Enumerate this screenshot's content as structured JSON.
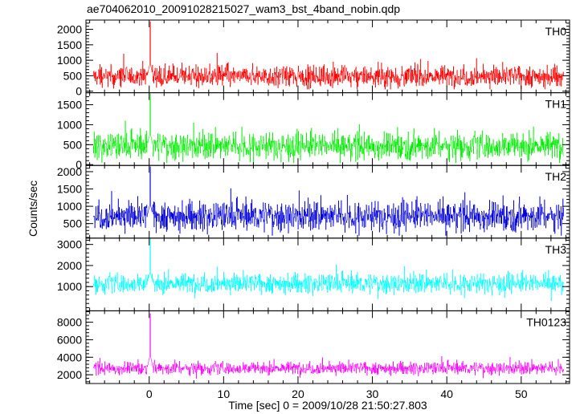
{
  "chart_data": {
    "type": "line",
    "title": "ae704062010_20091028215027_wam3_bst_4band_nobin.qdp",
    "xlabel": "Time [sec] 0 = 2009/10/28 21:50:27.803",
    "ylabel": "Counts/sec",
    "xlim": [
      -8.5,
      56.5
    ],
    "x_ticks": [
      0,
      10,
      20,
      30,
      40,
      50
    ],
    "series": [
      {
        "name": "TH0",
        "color": "#ff0000",
        "ylim": [
          -50,
          2300
        ],
        "y_ticks": [
          0,
          500,
          1000,
          1500,
          2000
        ],
        "x_start": -7.5,
        "x_end": 55.7,
        "baseline": 480,
        "spread": 310,
        "peak": {
          "x": 0.1,
          "value": 2250
        },
        "floor": 60,
        "cap": 1400
      },
      {
        "name": "TH1",
        "color": "#00ee00",
        "ylim": [
          -20,
          1800
        ],
        "y_ticks": [
          0,
          500,
          1000,
          1500
        ],
        "x_start": -7.5,
        "x_end": 55.7,
        "baseline": 470,
        "spread": 300,
        "peak": {
          "x": 0.1,
          "value": 1780
        },
        "floor": 40,
        "cap": 1400
      },
      {
        "name": "TH2",
        "color": "#0000dd",
        "ylim": [
          80,
          2180
        ],
        "y_ticks": [
          500,
          1000,
          1500,
          2000
        ],
        "x_start": -7.5,
        "x_end": 55.7,
        "baseline": 720,
        "spread": 380,
        "peak": {
          "x": 0.1,
          "value": 2150
        },
        "floor": 150,
        "cap": 1700
      },
      {
        "name": "TH3",
        "color": "#00ffff",
        "ylim": [
          -150,
          3300
        ],
        "y_ticks": [
          1000,
          2000,
          3000
        ],
        "x_start": -7.5,
        "x_end": 55.7,
        "baseline": 1150,
        "spread": 420,
        "peak": {
          "x": 0.1,
          "value": 3300
        },
        "floor": 250,
        "cap": 2600
      },
      {
        "name": "TH0123",
        "color": "#ff00ff",
        "ylim": [
          1000,
          9300
        ],
        "y_ticks": [
          2000,
          4000,
          6000,
          8000
        ],
        "x_start": -7.5,
        "x_end": 55.7,
        "baseline": 2750,
        "spread": 650,
        "peak": {
          "x": 0.1,
          "value": 9000
        },
        "floor": 1400,
        "cap": 4700
      }
    ]
  }
}
